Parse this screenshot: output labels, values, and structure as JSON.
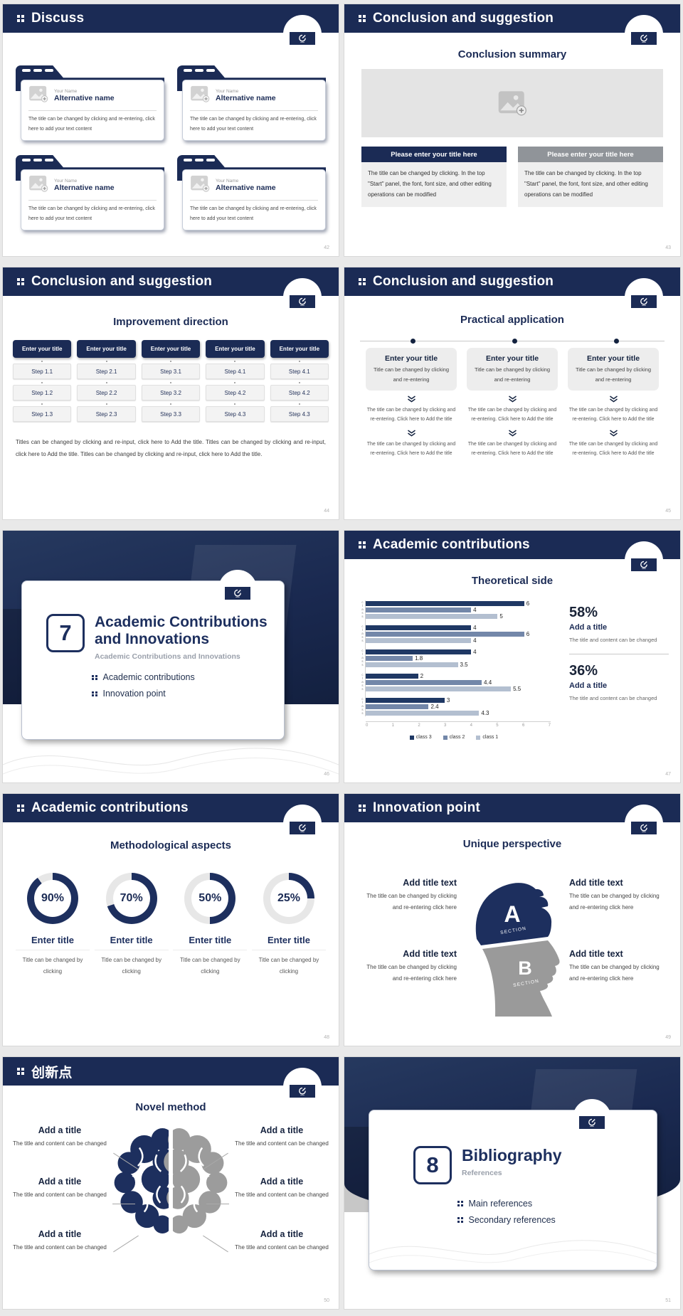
{
  "colors": {
    "navy": "#1b2b55",
    "navy_deep": "#1d2f5e",
    "gray_panel": "#909499",
    "donut_track": "#e7e7e7"
  },
  "chart_data": {
    "type": "bar",
    "orientation": "horizontal",
    "title": "Theoretical side",
    "categories": [
      "class…",
      "class…",
      "class…",
      "class…",
      "class…"
    ],
    "series": [
      {
        "name": "class 3",
        "color": "#1f3864",
        "values": [
          6,
          4,
          4,
          2,
          3
        ]
      },
      {
        "name": "class 2",
        "color": "#7387a9",
        "values": [
          4,
          6,
          1.8,
          4.4,
          2.4
        ]
      },
      {
        "name": "class 1",
        "color": "#b3bfd0",
        "values": [
          5,
          4,
          3.5,
          5.5,
          4.3
        ]
      }
    ],
    "xlim": [
      0,
      7
    ],
    "xticks": [
      0,
      1,
      2,
      3,
      4,
      5,
      6,
      7
    ],
    "legend_position": "bottom",
    "bar_labels": true,
    "grid": false
  },
  "slides": [
    {
      "header": "Discuss",
      "page": "42",
      "card": {
        "name_label": "Your Name",
        "name": "Alternative name",
        "body": "The title can be changed by clicking and re-entering, click here to add your text content"
      }
    },
    {
      "header": "Conclusion and suggestion",
      "page": "43",
      "title": "Conclusion summary",
      "panel_title": "Please enter your title here",
      "panel_body": "The title can be changed by clicking. In the top \"Start\" panel, the font, font size, and other editing operations can be modified"
    },
    {
      "header": "Conclusion and suggestion",
      "page": "44",
      "title": "Improvement direction",
      "column_title": "Enter your title",
      "columns": [
        [
          "Step 1.1",
          "Step 1.2",
          "Step 1.3"
        ],
        [
          "Step 2.1",
          "Step 2.2",
          "Step 2.3"
        ],
        [
          "Step 3.1",
          "Step 3.2",
          "Step 3.3"
        ],
        [
          "Step 4.1",
          "Step 4.2",
          "Step 4.3"
        ],
        [
          "Step 4.1",
          "Step 4.2",
          "Step 4.3"
        ]
      ],
      "paragraph": "Titles can be changed by clicking and re-input, click here to Add the title. Titles can be changed by clicking and re-input, click here to Add the title. Titles can be changed by clicking and re-input, click here to Add the title."
    },
    {
      "header": "Conclusion and suggestion",
      "page": "45",
      "title": "Practical application",
      "col": {
        "title": "Enter your title",
        "subtitle": "Title can be changed by clicking and re-entering",
        "step": "The title can be changed by clicking and re-entering. Click here to Add the title"
      }
    },
    {
      "page": "46",
      "number": "7",
      "title": "Academic Contributions and Innovations",
      "subtitle": "Academic Contributions and Innovations",
      "bullets": [
        "Academic contributions",
        "Innovation point"
      ]
    },
    {
      "header": "Academic contributions",
      "page": "47",
      "title": "Theoretical side",
      "stat_title": "Add a title",
      "stat_body": "The title and content can be changed",
      "stats": [
        {
          "percent": "58%"
        },
        {
          "percent": "36%"
        }
      ]
    },
    {
      "header": "Academic contributions",
      "page": "48",
      "title": "Methodological aspects",
      "donut_title": "Enter title",
      "donut_body": "Title can be changed by clicking",
      "donuts": [
        {
          "percent": 90,
          "label": "90%"
        },
        {
          "percent": 70,
          "label": "70%"
        },
        {
          "percent": 50,
          "label": "50%"
        },
        {
          "percent": 25,
          "label": "25%"
        }
      ]
    },
    {
      "header": "Innovation point",
      "page": "49",
      "title": "Unique perspective",
      "block": {
        "title": "Add title text",
        "body": "The title can be changed by clicking and re-entering click here"
      },
      "head": {
        "a": "A",
        "a_sub": "SECTION",
        "b": "B",
        "b_sub": "SECTION"
      }
    },
    {
      "header": "创新点",
      "page": "50",
      "title": "Novel method",
      "block": {
        "title": "Add a title",
        "body": "The title and content can be changed"
      }
    },
    {
      "page": "51",
      "number": "8",
      "title": "Bibliography",
      "subtitle": "References",
      "bullets": [
        "Main references",
        "Secondary references"
      ]
    }
  ]
}
